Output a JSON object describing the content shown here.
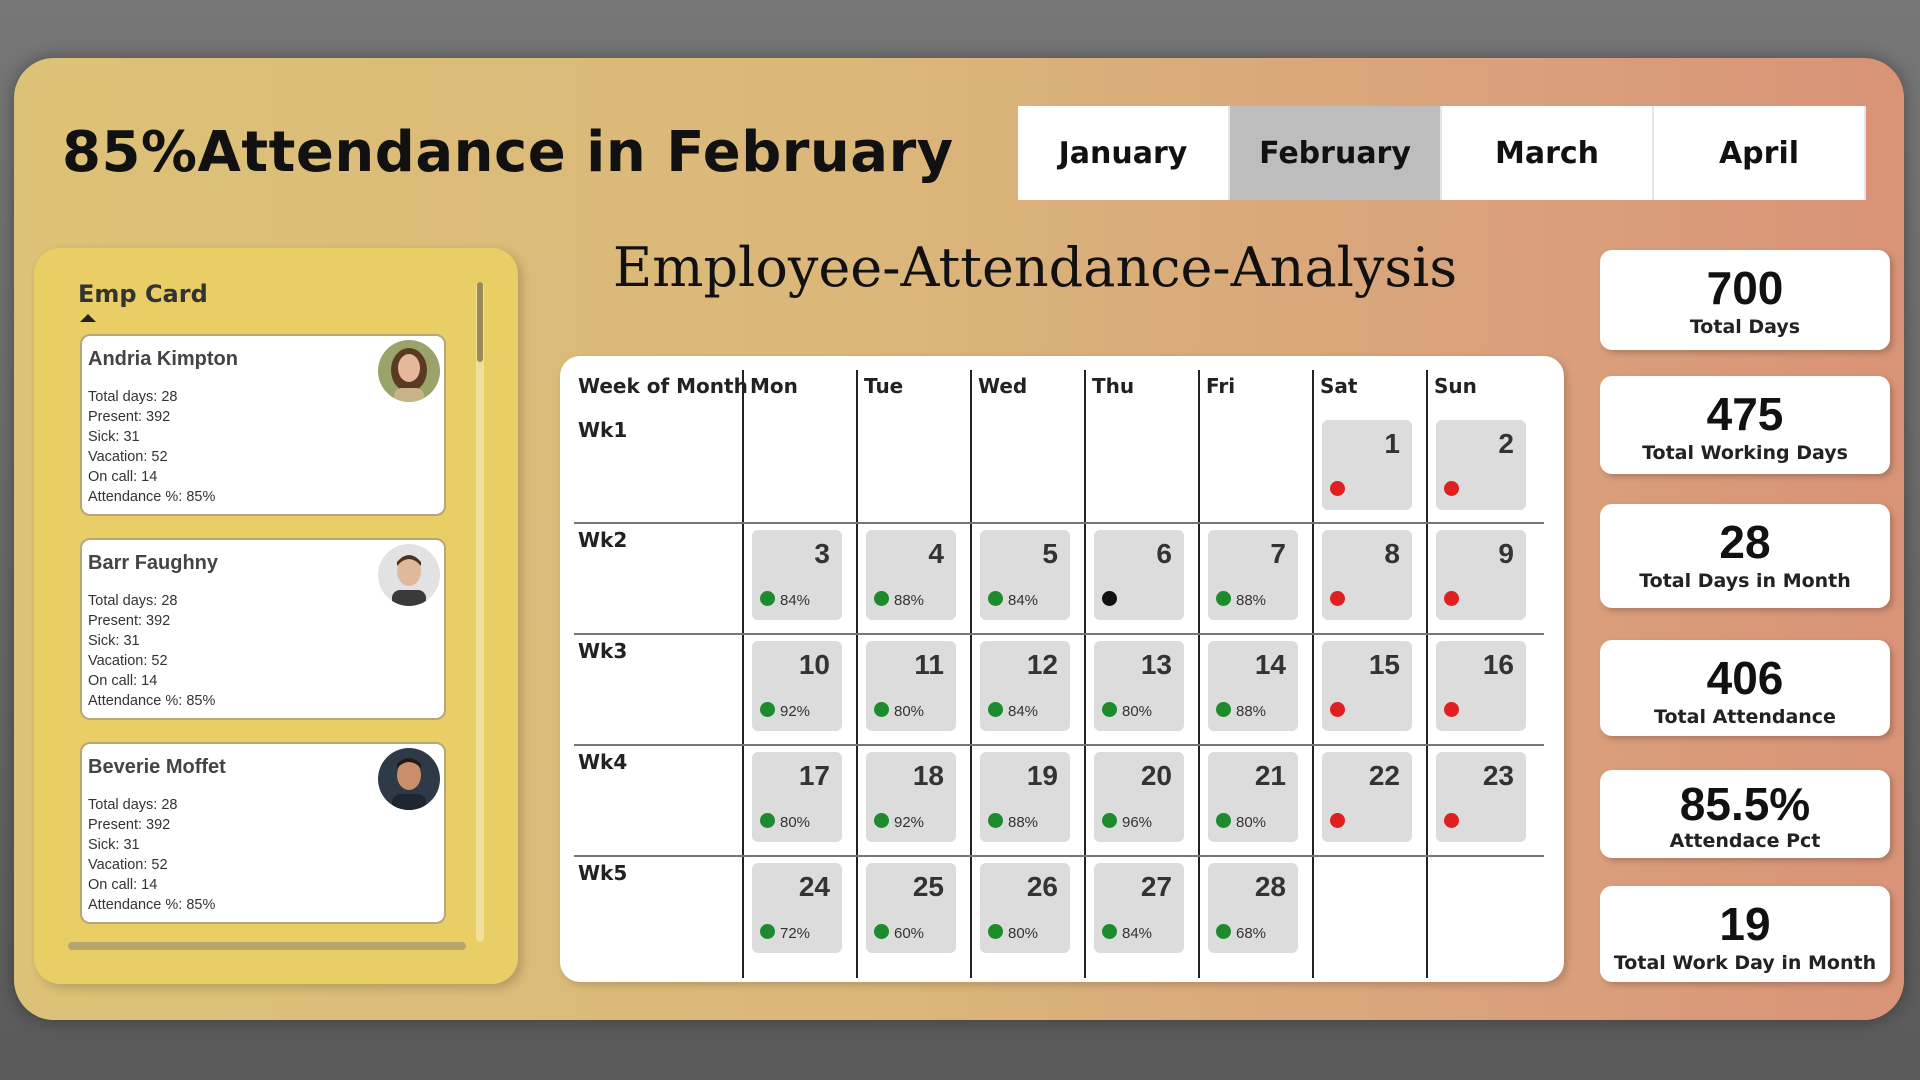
{
  "header": {
    "title": "85%Attendance in February",
    "subtitle": "Employee-Attendance-Analysis"
  },
  "month_tabs": [
    {
      "label": "January",
      "active": false
    },
    {
      "label": "February",
      "active": true
    },
    {
      "label": "March",
      "active": false
    },
    {
      "label": "April",
      "active": false
    }
  ],
  "emp_panel": {
    "title": "Emp Card",
    "cards": [
      {
        "name": "Andria Kimpton",
        "lines": [
          "Total days: 28",
          "Present: 392",
          "Sick: 31",
          "Vacation: 52",
          "On call: 14",
          "Attendance %: 85%"
        ]
      },
      {
        "name": "Barr Faughny",
        "lines": [
          "Total days: 28",
          "Present: 392",
          "Sick: 31",
          "Vacation: 52",
          "On call: 14",
          "Attendance %: 85%"
        ]
      },
      {
        "name": "Beverie Moffet",
        "lines": [
          "Total days: 28",
          "Present: 392",
          "Sick: 31",
          "Vacation: 52",
          "On call: 14",
          "Attendance %: 85%"
        ]
      }
    ]
  },
  "calendar": {
    "week_header": "Week of Month",
    "days": [
      "Mon",
      "Tue",
      "Wed",
      "Thu",
      "Fri",
      "Sat",
      "Sun"
    ],
    "weeks": [
      "Wk1",
      "Wk2",
      "Wk3",
      "Wk4",
      "Wk5"
    ],
    "cells": [
      {
        "week": 0,
        "dow": 5,
        "day": "1",
        "pct": "",
        "status": "weekend"
      },
      {
        "week": 0,
        "dow": 6,
        "day": "2",
        "pct": "",
        "status": "weekend"
      },
      {
        "week": 1,
        "dow": 0,
        "day": "3",
        "pct": "84%",
        "status": "work"
      },
      {
        "week": 1,
        "dow": 1,
        "day": "4",
        "pct": "88%",
        "status": "work"
      },
      {
        "week": 1,
        "dow": 2,
        "day": "5",
        "pct": "84%",
        "status": "work"
      },
      {
        "week": 1,
        "dow": 3,
        "day": "6",
        "pct": "",
        "status": "holiday"
      },
      {
        "week": 1,
        "dow": 4,
        "day": "7",
        "pct": "88%",
        "status": "work"
      },
      {
        "week": 1,
        "dow": 5,
        "day": "8",
        "pct": "",
        "status": "weekend"
      },
      {
        "week": 1,
        "dow": 6,
        "day": "9",
        "pct": "",
        "status": "weekend"
      },
      {
        "week": 2,
        "dow": 0,
        "day": "10",
        "pct": "92%",
        "status": "work"
      },
      {
        "week": 2,
        "dow": 1,
        "day": "11",
        "pct": "80%",
        "status": "work"
      },
      {
        "week": 2,
        "dow": 2,
        "day": "12",
        "pct": "84%",
        "status": "work"
      },
      {
        "week": 2,
        "dow": 3,
        "day": "13",
        "pct": "80%",
        "status": "work"
      },
      {
        "week": 2,
        "dow": 4,
        "day": "14",
        "pct": "88%",
        "status": "work"
      },
      {
        "week": 2,
        "dow": 5,
        "day": "15",
        "pct": "",
        "status": "weekend"
      },
      {
        "week": 2,
        "dow": 6,
        "day": "16",
        "pct": "",
        "status": "weekend"
      },
      {
        "week": 3,
        "dow": 0,
        "day": "17",
        "pct": "80%",
        "status": "work"
      },
      {
        "week": 3,
        "dow": 1,
        "day": "18",
        "pct": "92%",
        "status": "work"
      },
      {
        "week": 3,
        "dow": 2,
        "day": "19",
        "pct": "88%",
        "status": "work"
      },
      {
        "week": 3,
        "dow": 3,
        "day": "20",
        "pct": "96%",
        "status": "work"
      },
      {
        "week": 3,
        "dow": 4,
        "day": "21",
        "pct": "80%",
        "status": "work"
      },
      {
        "week": 3,
        "dow": 5,
        "day": "22",
        "pct": "",
        "status": "weekend"
      },
      {
        "week": 3,
        "dow": 6,
        "day": "23",
        "pct": "",
        "status": "weekend"
      },
      {
        "week": 4,
        "dow": 0,
        "day": "24",
        "pct": "72%",
        "status": "work"
      },
      {
        "week": 4,
        "dow": 1,
        "day": "25",
        "pct": "60%",
        "status": "work"
      },
      {
        "week": 4,
        "dow": 2,
        "day": "26",
        "pct": "80%",
        "status": "work"
      },
      {
        "week": 4,
        "dow": 3,
        "day": "27",
        "pct": "84%",
        "status": "work"
      },
      {
        "week": 4,
        "dow": 4,
        "day": "28",
        "pct": "68%",
        "status": "work"
      }
    ]
  },
  "kpis": [
    {
      "value": "700",
      "label": "Total Days"
    },
    {
      "value": "475",
      "label": "Total Working Days"
    },
    {
      "value": "28",
      "label": "Total Days in Month"
    },
    {
      "value": "406",
      "label": "Total Attendance"
    },
    {
      "value": "85.5%",
      "label": "Attendace Pct"
    },
    {
      "value": "19",
      "label": "Total Work Day in Month"
    }
  ],
  "colors": {
    "work": "#1e8a2e",
    "weekend": "#e02020",
    "holiday": "#111111",
    "active_tab": "#bdbdbd",
    "emp_panel": "#e9cd65"
  }
}
